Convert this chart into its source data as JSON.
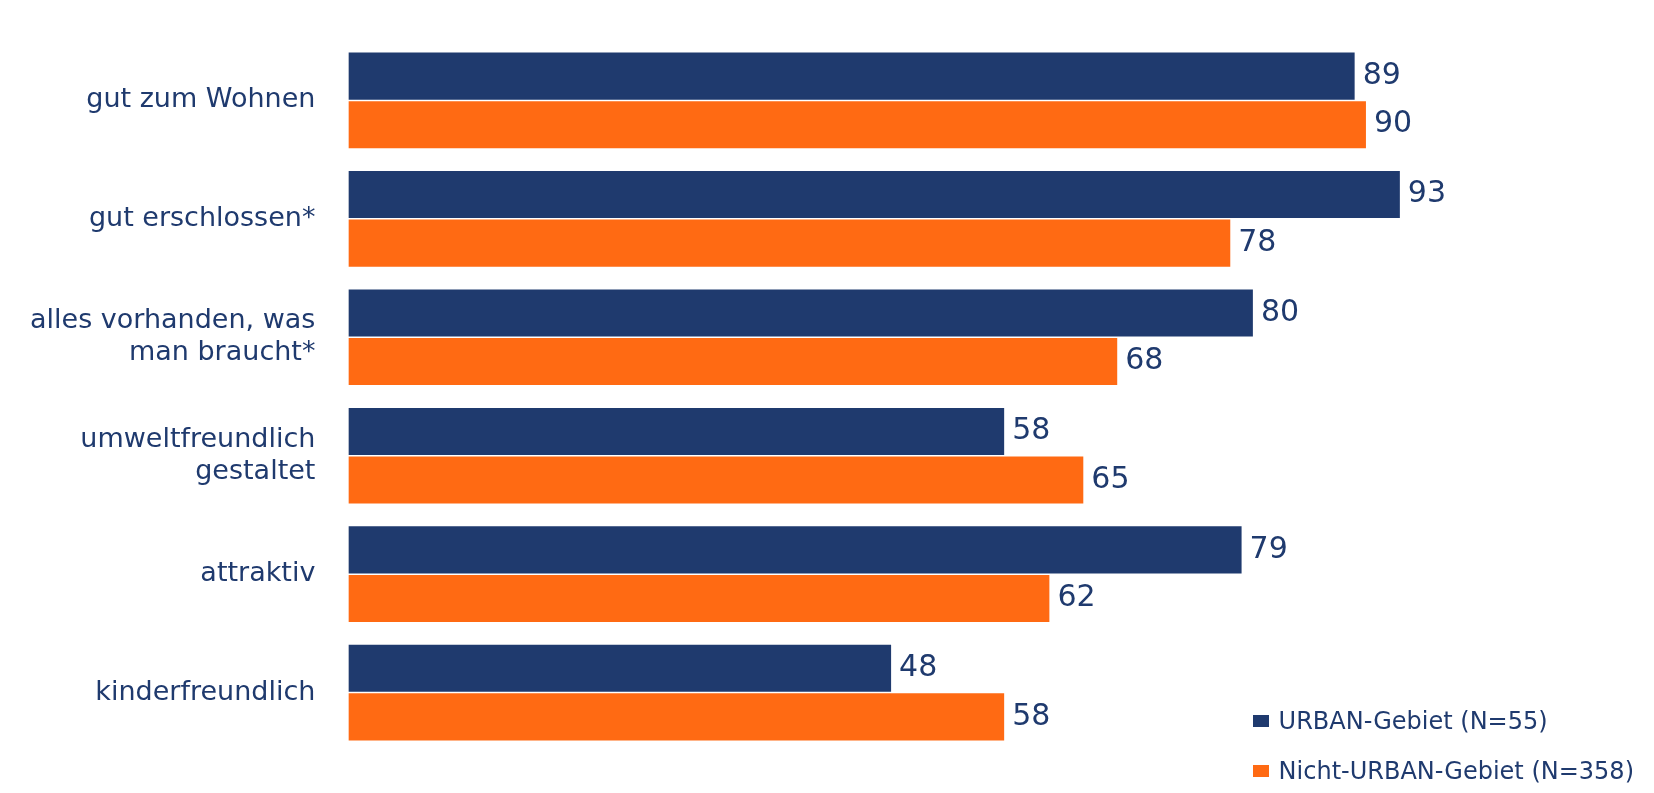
{
  "chart_data": {
    "type": "bar",
    "orientation": "horizontal",
    "categories": [
      "gut zum Wohnen",
      "gut erschlossen*",
      "alles vorhanden, was man braucht*",
      "umweltfreundlich gestaltet",
      "attraktiv",
      "kinderfreundlich"
    ],
    "series": [
      {
        "name": "URBAN-Gebiet (N=55)",
        "color": "#1f3a6e",
        "values": [
          89,
          93,
          80,
          58,
          79,
          48
        ]
      },
      {
        "name": "Nicht-URBAN-Gebiet (N=358)",
        "color": "#ff6a13",
        "values": [
          90,
          78,
          68,
          65,
          62,
          58
        ]
      }
    ],
    "data_labels": true,
    "legend": "bottom right"
  }
}
